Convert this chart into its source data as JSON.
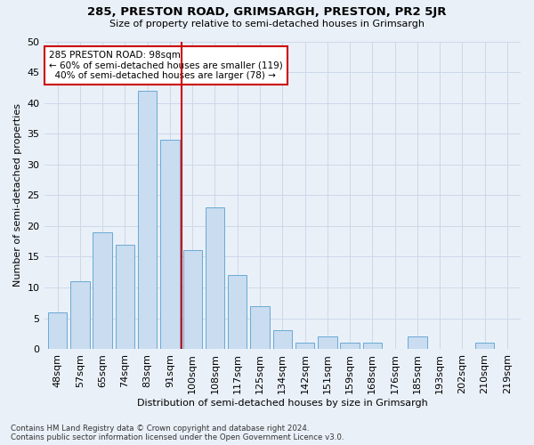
{
  "title": "285, PRESTON ROAD, GRIMSARGH, PRESTON, PR2 5JR",
  "subtitle": "Size of property relative to semi-detached houses in Grimsargh",
  "xlabel": "Distribution of semi-detached houses by size in Grimsargh",
  "ylabel": "Number of semi-detached properties",
  "footnote1": "Contains HM Land Registry data © Crown copyright and database right 2024.",
  "footnote2": "Contains public sector information licensed under the Open Government Licence v3.0.",
  "bin_labels": [
    "48sqm",
    "57sqm",
    "65sqm",
    "74sqm",
    "83sqm",
    "91sqm",
    "100sqm",
    "108sqm",
    "117sqm",
    "125sqm",
    "134sqm",
    "142sqm",
    "151sqm",
    "159sqm",
    "168sqm",
    "176sqm",
    "185sqm",
    "193sqm",
    "202sqm",
    "210sqm",
    "219sqm"
  ],
  "bin_values": [
    6,
    11,
    19,
    17,
    42,
    34,
    16,
    23,
    12,
    7,
    3,
    1,
    2,
    1,
    1,
    0,
    2,
    0,
    0,
    1,
    0
  ],
  "bar_color": "#c9dcf0",
  "bar_edge_color": "#6aaad4",
  "grid_color": "#cdd8e8",
  "vline_index": 6,
  "vline_color": "#cc0000",
  "annotation_line1": "285 PRESTON ROAD: 98sqm",
  "annotation_line2": "← 60% of semi-detached houses are smaller (119)",
  "annotation_line3": "  40% of semi-detached houses are larger (78) →",
  "annotation_box_color": "white",
  "annotation_box_edge": "#cc0000",
  "ylim": [
    0,
    50
  ],
  "background_color": "#eaf0f8"
}
